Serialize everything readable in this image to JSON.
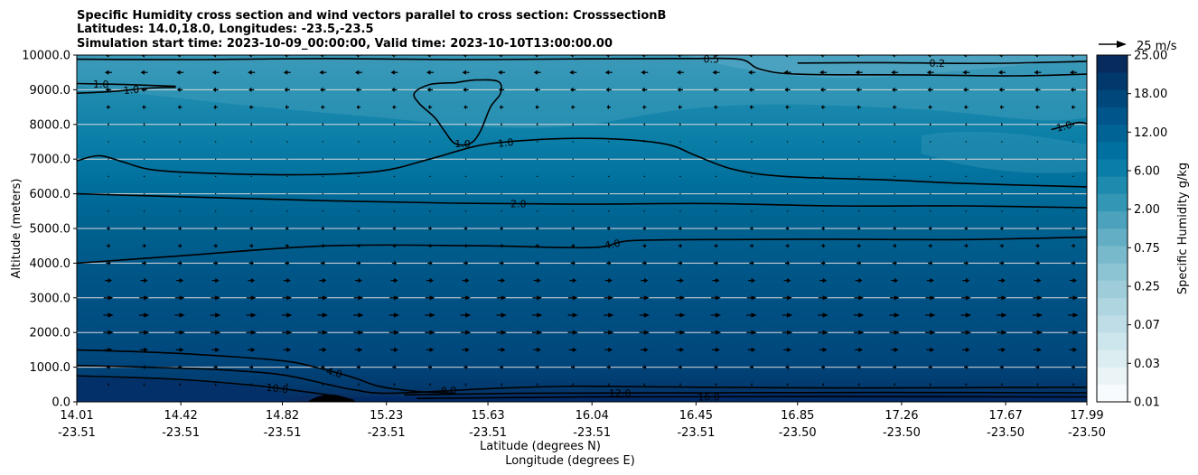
{
  "chart_data": {
    "type": "heatmap",
    "title_lines": [
      "Specific Humidity cross section and wind vectors parallel to cross section: CrosssectionB",
      "Latitudes: 14.0,18.0, Longitudes: -23.5,-23.5",
      "Simulation start time: 2023-10-09_00:00:00, Valid time: 2023-10-10T13:00:00.00"
    ],
    "xlabel_lat": "Latitude (degrees N)",
    "xlabel_lon": "Longitude (degrees E)",
    "ylabel": "Altitude (meters)",
    "ylim": [
      0,
      10000
    ],
    "xlim": [
      14.01,
      17.99
    ],
    "y_ticks": [
      "0.0",
      "1000.0",
      "2000.0",
      "3000.0",
      "4000.0",
      "5000.0",
      "6000.0",
      "7000.0",
      "8000.0",
      "9000.0",
      "10000.0"
    ],
    "y_tick_values": [
      0,
      1000,
      2000,
      3000,
      4000,
      5000,
      6000,
      7000,
      8000,
      9000,
      10000
    ],
    "x_ticks": [
      {
        "lat": "14.01",
        "lon": "-23.51",
        "v": 14.01
      },
      {
        "lat": "14.42",
        "lon": "-23.51",
        "v": 14.42
      },
      {
        "lat": "14.82",
        "lon": "-23.51",
        "v": 14.82
      },
      {
        "lat": "15.23",
        "lon": "-23.51",
        "v": 15.23
      },
      {
        "lat": "15.63",
        "lon": "-23.51",
        "v": 15.63
      },
      {
        "lat": "16.04",
        "lon": "-23.51",
        "v": 16.04
      },
      {
        "lat": "16.45",
        "lon": "-23.51",
        "v": 16.45
      },
      {
        "lat": "16.85",
        "lon": "-23.50",
        "v": 16.85
      },
      {
        "lat": "17.26",
        "lon": "-23.50",
        "v": 17.26
      },
      {
        "lat": "17.67",
        "lon": "-23.50",
        "v": 17.67
      },
      {
        "lat": "17.99",
        "lon": "-23.50",
        "v": 17.99
      }
    ],
    "colorbar": {
      "label": "Specific Humidity g/kg",
      "tick_labels": [
        "0.01",
        "0.03",
        "0.07",
        "0.25",
        "0.75",
        "2.00",
        "6.00",
        "12.00",
        "18.00",
        "25.00"
      ],
      "n_levels": 20,
      "colors": [
        "#f7fbfd",
        "#eaf4f7",
        "#dcedf2",
        "#cde5ec",
        "#bedde6",
        "#aed5e0",
        "#9ecdd9",
        "#8cc4d3",
        "#79b9cc",
        "#63aec5",
        "#4ca2bd",
        "#3496b5",
        "#1e8aae",
        "#0a7ea7",
        "#0070a0",
        "#006396",
        "#00558a",
        "#00477c",
        "#02396d",
        "#082b5e"
      ]
    },
    "quiver_key": {
      "label": "25 m/s",
      "speed": 25
    },
    "grid": "horizontal",
    "contours": [
      {
        "label": "0.5",
        "points": [
          [
            14.01,
            9880
          ],
          [
            14.5,
            9870
          ],
          [
            15.0,
            9900
          ],
          [
            15.5,
            9870
          ],
          [
            16.0,
            9890
          ],
          [
            16.4,
            9900
          ],
          [
            16.62,
            9880
          ],
          [
            16.7,
            9600
          ],
          [
            16.85,
            9450
          ],
          [
            17.3,
            9430
          ],
          [
            17.7,
            9400
          ],
          [
            17.99,
            9450
          ]
        ]
      },
      {
        "label": "0.2",
        "points": [
          [
            16.85,
            9770
          ],
          [
            17.2,
            9780
          ],
          [
            17.6,
            9760
          ],
          [
            17.99,
            9820
          ]
        ]
      },
      {
        "label": "1.0",
        "points": [
          [
            14.01,
            8900
          ],
          [
            14.15,
            8950
          ],
          [
            14.3,
            9050
          ],
          [
            14.4,
            9070
          ]
        ]
      },
      {
        "label": "1.0",
        "points": [
          [
            14.01,
            9180
          ],
          [
            14.2,
            9150
          ],
          [
            14.4,
            9100
          ]
        ]
      },
      {
        "label": "1.0",
        "points": [
          [
            15.5,
            9200
          ],
          [
            15.58,
            9280
          ],
          [
            15.67,
            9240
          ],
          [
            15.68,
            8900
          ],
          [
            15.64,
            8500
          ],
          [
            15.6,
            7800
          ],
          [
            15.56,
            7450
          ],
          [
            15.5,
            7450
          ],
          [
            15.46,
            7800
          ],
          [
            15.42,
            8200
          ],
          [
            15.36,
            8600
          ],
          [
            15.34,
            8900
          ],
          [
            15.4,
            9150
          ],
          [
            15.5,
            9200
          ]
        ]
      },
      {
        "label": "1.0",
        "points": [
          [
            14.01,
            6950
          ],
          [
            14.1,
            7100
          ],
          [
            14.2,
            6900
          ],
          [
            14.3,
            6700
          ],
          [
            14.5,
            6600
          ],
          [
            14.9,
            6550
          ],
          [
            15.2,
            6650
          ],
          [
            15.4,
            7000
          ],
          [
            15.6,
            7400
          ],
          [
            15.8,
            7550
          ],
          [
            16.0,
            7600
          ],
          [
            16.2,
            7550
          ],
          [
            16.35,
            7400
          ],
          [
            16.45,
            7100
          ],
          [
            16.6,
            6700
          ],
          [
            16.8,
            6500
          ],
          [
            17.2,
            6400
          ],
          [
            17.5,
            6300
          ],
          [
            17.99,
            6200
          ]
        ]
      },
      {
        "label": "1.0",
        "points": [
          [
            17.85,
            7850
          ],
          [
            17.95,
            8050
          ],
          [
            17.99,
            8020
          ]
        ]
      },
      {
        "label": "2.0",
        "points": [
          [
            14.01,
            6000
          ],
          [
            14.5,
            5900
          ],
          [
            15.0,
            5800
          ],
          [
            15.5,
            5730
          ],
          [
            16.0,
            5700
          ],
          [
            16.5,
            5720
          ],
          [
            17.0,
            5650
          ],
          [
            17.5,
            5650
          ],
          [
            17.99,
            5600
          ]
        ]
      },
      {
        "label": "4.0",
        "points": [
          [
            14.01,
            4000
          ],
          [
            14.4,
            4200
          ],
          [
            15.0,
            4500
          ],
          [
            15.6,
            4500
          ],
          [
            16.04,
            4450
          ],
          [
            16.2,
            4650
          ],
          [
            16.6,
            4680
          ],
          [
            17.0,
            4690
          ],
          [
            17.5,
            4680
          ],
          [
            17.99,
            4750
          ]
        ]
      },
      {
        "label": "4.0",
        "points": [
          [
            14.01,
            1500
          ],
          [
            14.4,
            1400
          ],
          [
            14.8,
            1200
          ],
          [
            14.95,
            1000
          ],
          [
            15.1,
            700
          ],
          [
            15.2,
            450
          ],
          [
            15.35,
            300
          ],
          [
            15.5,
            250
          ]
        ]
      },
      {
        "label": "8.0",
        "points": [
          [
            14.01,
            1050
          ],
          [
            14.5,
            950
          ],
          [
            14.8,
            800
          ],
          [
            15.0,
            500
          ],
          [
            15.1,
            350
          ],
          [
            15.25,
            250
          ],
          [
            15.7,
            400
          ],
          [
            16.0,
            450
          ],
          [
            16.5,
            420
          ],
          [
            17.0,
            400
          ],
          [
            17.5,
            410
          ],
          [
            17.99,
            420
          ]
        ]
      },
      {
        "label": "10.0",
        "points": [
          [
            14.01,
            750
          ],
          [
            14.4,
            650
          ],
          [
            14.7,
            480
          ],
          [
            14.9,
            300
          ],
          [
            15.0,
            200
          ],
          [
            15.1,
            50
          ]
        ]
      },
      {
        "label": "12.0",
        "points": [
          [
            15.3,
            200
          ],
          [
            15.8,
            250
          ],
          [
            16.5,
            260
          ],
          [
            17.2,
            270
          ],
          [
            17.99,
            260
          ]
        ]
      },
      {
        "label": "16.0",
        "points": [
          [
            15.35,
            100
          ],
          [
            16.0,
            140
          ],
          [
            17.0,
            150
          ],
          [
            17.99,
            140
          ]
        ]
      }
    ],
    "wind_rows": [
      {
        "z": 10000,
        "u": -8
      },
      {
        "z": 9500,
        "u": -9
      },
      {
        "z": 9000,
        "u": -7
      },
      {
        "z": 8500,
        "u": -5
      },
      {
        "z": 8000,
        "u": -2
      },
      {
        "z": 7500,
        "u": 0
      },
      {
        "z": 7000,
        "u": 0
      },
      {
        "z": 6500,
        "u": 0
      },
      {
        "z": 6000,
        "u": 0
      },
      {
        "z": 5500,
        "u": 1
      },
      {
        "z": 5000,
        "u": 4
      },
      {
        "z": 4500,
        "u": 5
      },
      {
        "z": 4000,
        "u": 6
      },
      {
        "z": 3500,
        "u": 9
      },
      {
        "z": 3000,
        "u": 12
      },
      {
        "z": 2500,
        "u": 13
      },
      {
        "z": 2000,
        "u": 13
      },
      {
        "z": 1500,
        "u": 10
      },
      {
        "z": 1000,
        "u": 5
      },
      {
        "z": 500,
        "u": 2
      }
    ]
  }
}
